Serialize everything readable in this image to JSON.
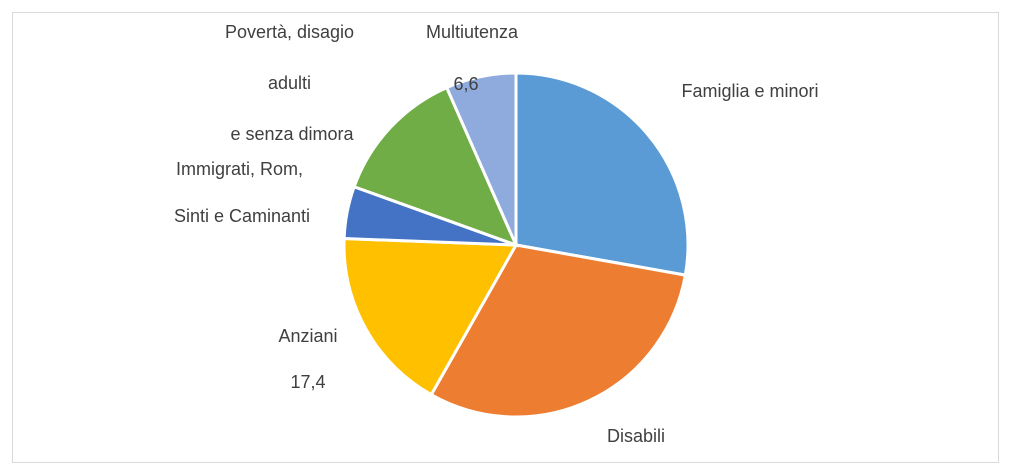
{
  "chart_data": {
    "type": "pie",
    "categories": [
      "Famiglia e minori",
      "Disabili",
      "Anziani",
      "Immigrati, Rom, Sinti e Caminanti",
      "Povertà, disagio adulti e senza dimora",
      "Multiutenza"
    ],
    "values": [
      27.8,
      30.4,
      17.4,
      4.9,
      12.9,
      6.6
    ],
    "value_labels": [
      null,
      null,
      "17,4",
      null,
      null,
      "6,6"
    ],
    "colors": [
      "#5b9bd5",
      "#ed7d31",
      "#ffc000",
      "#4472c4",
      "#70ad47",
      "#8faadc"
    ]
  }
}
